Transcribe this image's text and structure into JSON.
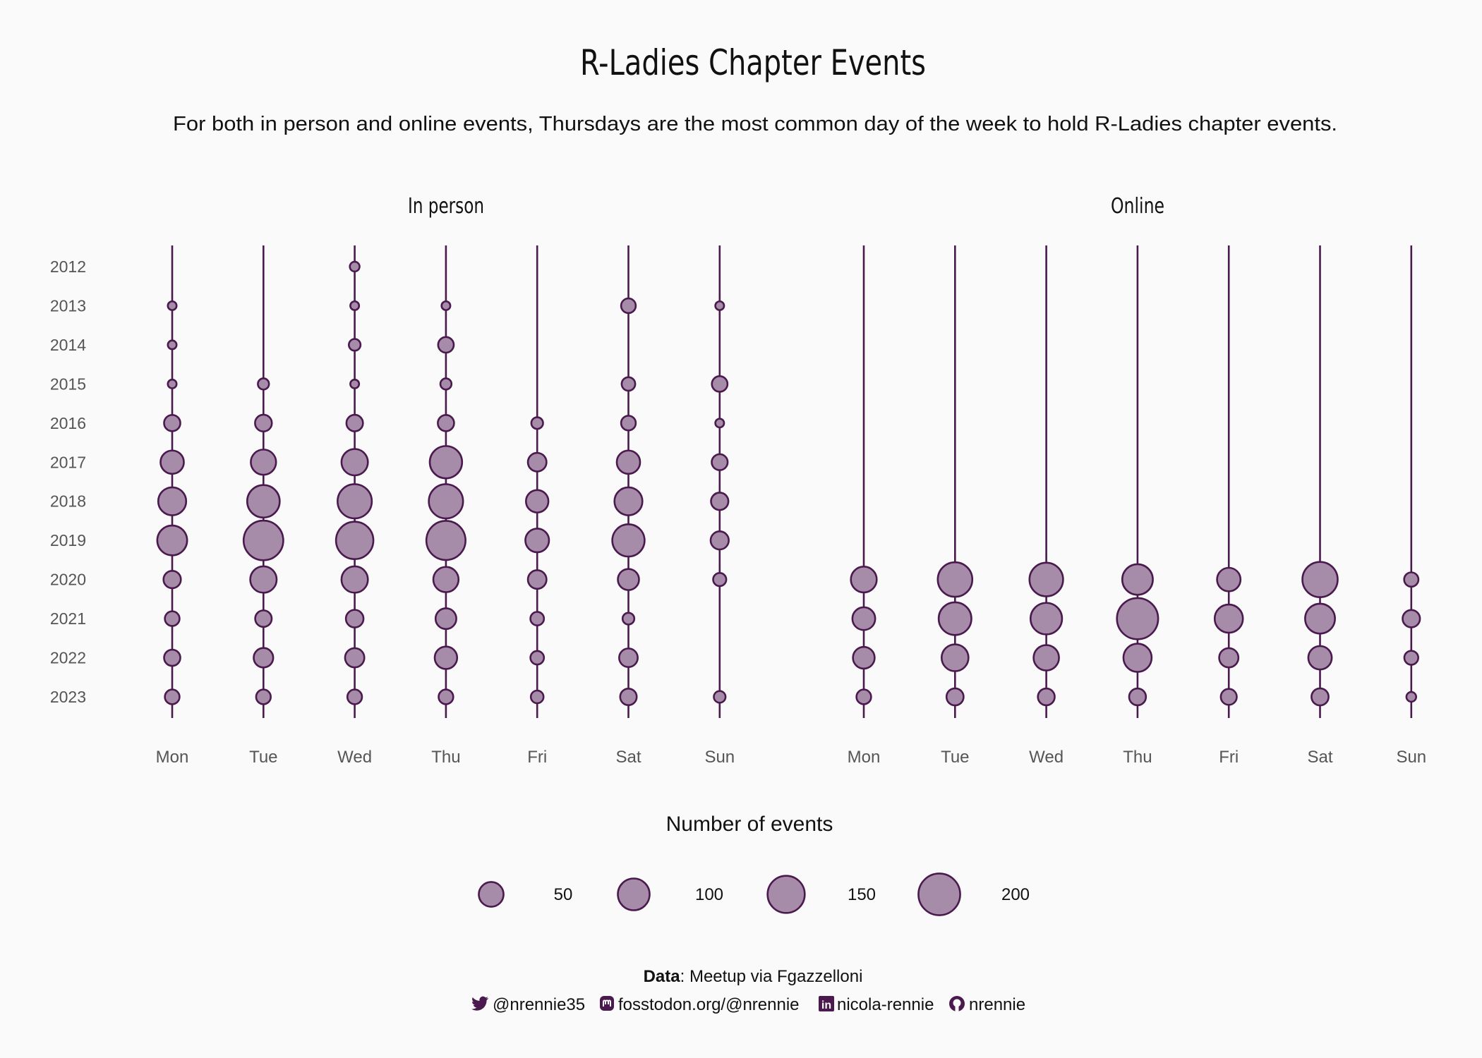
{
  "chart_data": {
    "type": "scatter",
    "title": "R-Ladies Chapter Events",
    "subtitle": "For both in person and online events, Thursdays are the most common day of the week to hold R-Ladies chapter events.",
    "years": [
      "2012",
      "2013",
      "2014",
      "2015",
      "2016",
      "2017",
      "2018",
      "2019",
      "2020",
      "2021",
      "2022",
      "2023"
    ],
    "days": [
      "Mon",
      "Tue",
      "Wed",
      "Thu",
      "Fri",
      "Sat",
      "Sun"
    ],
    "panels": [
      {
        "name": "In person",
        "values": {
          "Mon": [
            null,
            1,
            1,
            1,
            17,
            50,
            81,
            96,
            21,
            12,
            17,
            12
          ],
          "Tue": [
            null,
            null,
            null,
            4,
            19,
            62,
            119,
            193,
            70,
            18,
            30,
            12
          ],
          "Wed": [
            2,
            1,
            5,
            1,
            18,
            70,
            135,
            167,
            70,
            22,
            29,
            12
          ],
          "Thu": [
            null,
            1,
            15,
            4,
            17,
            117,
            135,
            187,
            62,
            36,
            45,
            12
          ],
          "Fri": [
            null,
            null,
            null,
            null,
            5,
            26,
            45,
            52,
            26,
            9,
            9,
            7
          ],
          "Sat": [
            null,
            12,
            null,
            9,
            12,
            50,
            81,
            117,
            38,
            5,
            26,
            18
          ],
          "Sun": [
            null,
            1,
            null,
            15,
            1,
            16,
            21,
            24,
            8,
            null,
            null,
            5
          ]
        }
      },
      {
        "name": "Online",
        "values": {
          "Mon": [
            null,
            null,
            null,
            null,
            null,
            null,
            null,
            null,
            66,
            47,
            41,
            12
          ],
          "Tue": [
            null,
            null,
            null,
            null,
            null,
            null,
            null,
            null,
            138,
            121,
            73,
            20
          ],
          "Wed": [
            null,
            null,
            null,
            null,
            null,
            null,
            null,
            null,
            129,
            110,
            63,
            19
          ],
          "Thu": [
            null,
            null,
            null,
            null,
            null,
            null,
            null,
            null,
            102,
            211,
            83,
            19
          ],
          "Fri": [
            null,
            null,
            null,
            null,
            null,
            null,
            null,
            null,
            51,
            83,
            29,
            16
          ],
          "Sat": [
            null,
            null,
            null,
            null,
            null,
            null,
            null,
            null,
            145,
            96,
            51,
            20
          ],
          "Sun": [
            null,
            null,
            null,
            null,
            null,
            null,
            null,
            null,
            11,
            21,
            10,
            2
          ]
        }
      }
    ],
    "legend": {
      "title": "Number of events",
      "values": [
        50,
        100,
        150,
        200
      ],
      "labels": [
        "50",
        "100",
        "150",
        "200"
      ],
      "placement": "bottom"
    },
    "colors": {
      "fill": "#a68ca8",
      "stroke": "#4a1a4e",
      "line": "#4a1a4e",
      "background": "#fafafa"
    }
  },
  "caption": {
    "data_label": "Data",
    "data_text": ": Meetup via Fgazzelloni",
    "twitter": "@nrennie35",
    "mastodon": "fosstodon.org/@nrennie",
    "linkedin": "nicola-rennie",
    "github": "nrennie"
  }
}
